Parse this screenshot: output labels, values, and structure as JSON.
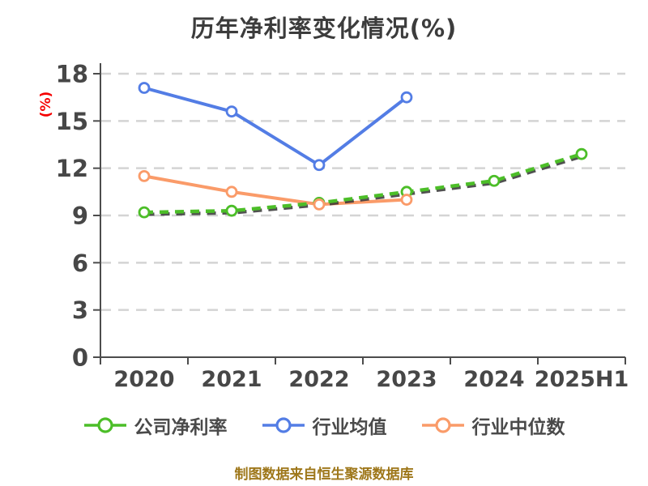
{
  "chart_data": {
    "type": "line",
    "title": "历年净利率变化情况(%)",
    "ylabel": "(%)",
    "xlabel": "",
    "categories": [
      "2020",
      "2021",
      "2022",
      "2023",
      "2024",
      "2025H1"
    ],
    "series": [
      {
        "key": "company-net-margin",
        "name": "公司净利率",
        "color": "#4CBE28",
        "line_style": "dashed-with-dark-shadow",
        "values": [
          9.2,
          9.3,
          9.8,
          10.5,
          11.2,
          12.9
        ]
      },
      {
        "key": "industry-mean",
        "name": "行业均值",
        "color": "#537DE5",
        "line_style": "solid",
        "values": [
          17.1,
          15.6,
          12.2,
          16.5,
          null,
          null
        ]
      },
      {
        "key": "industry-median",
        "name": "行业中位数",
        "color": "#FA9B69",
        "line_style": "solid",
        "values": [
          11.5,
          10.5,
          9.7,
          10.0,
          null,
          null
        ]
      }
    ],
    "ylim": [
      0,
      18
    ],
    "ytick_step": 3,
    "yticks": [
      0,
      3,
      6,
      9,
      12,
      15,
      18
    ],
    "grid": "horizontal-dashed",
    "legend_position": "bottom",
    "marker": "white-filled-circle"
  },
  "footer": {
    "text": "制图数据来自恒生聚源数据库"
  },
  "colors": {
    "background": "#FFFFFF",
    "title_text": "#3C3C3C",
    "tick_text": "#474747",
    "legend_text": "#4A4A4A",
    "axis_line": "#4C4C4C",
    "grid_line": "#D4D4D4",
    "ylabel_red": "#F50000",
    "footer_gold": "#9E771A",
    "shadow_dark": "#333333",
    "marker_fill": "#FFFFFF"
  }
}
